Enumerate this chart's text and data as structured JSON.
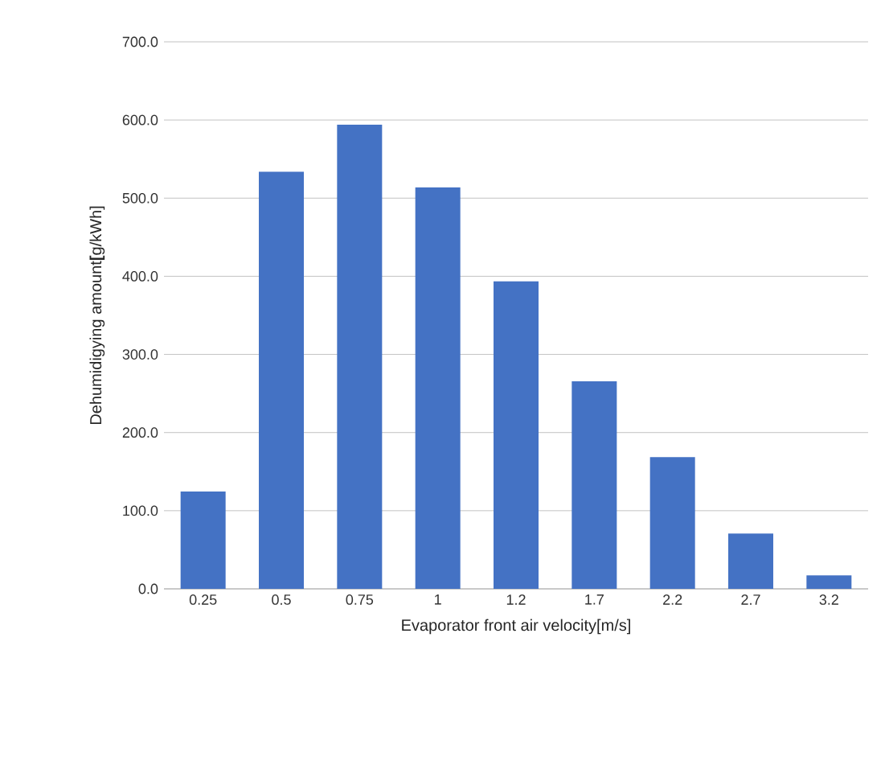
{
  "chart_data": {
    "type": "bar",
    "xlabel": "Evaporator front  air velocity[m/s]",
    "ylabel": "Dehumidigying amount**[**g/kWh]",
    "categories": [
      "0.25",
      "0.5",
      "0.75",
      "1",
      "1.2",
      "1.7",
      "2.2",
      "2.7",
      "3.2"
    ],
    "values": [
      124.5,
      533.7,
      594.0,
      513.7,
      393.4,
      265.5,
      168.5,
      70.8,
      17.2
    ],
    "color": "#4472c4",
    "ylim": [
      0,
      700
    ],
    "yticks": [
      {
        "value": 0,
        "label": "0.0"
      },
      {
        "value": 100,
        "label": "100.0"
      },
      {
        "value": 200,
        "label": "200.0"
      },
      {
        "value": 300,
        "label": "300.0"
      },
      {
        "value": 400,
        "label": "400.0"
      },
      {
        "value": 500,
        "label": "500.0"
      },
      {
        "value": 600,
        "label": "600.0"
      },
      {
        "value": 700,
        "label": "700.0"
      }
    ],
    "grid": "y"
  }
}
